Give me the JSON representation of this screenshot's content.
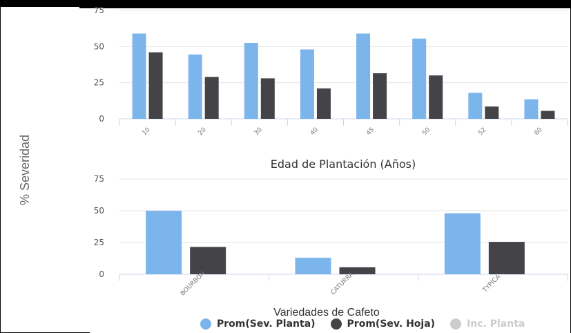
{
  "y_axis_label": "% Severidad",
  "legend": [
    {
      "label": "Prom(Sev. Planta)",
      "color": "#7cb5ec",
      "enabled": true
    },
    {
      "label": "Prom(Sev. Hoja)",
      "color": "#434348",
      "enabled": true
    },
    {
      "label": "Inc. Planta",
      "color": "#cccccc",
      "enabled": false
    }
  ],
  "chart_data": [
    {
      "type": "bar",
      "xlabel": "Edad de Plantación (Años)",
      "ylabel": "% Severidad",
      "categories": [
        "10",
        "20",
        "30",
        "40",
        "45",
        "50",
        "52",
        "60"
      ],
      "ylim": [
        0,
        75
      ],
      "yticks": [
        "0",
        "25",
        "50",
        "75"
      ],
      "grid": true,
      "series": [
        {
          "name": "Prom(Sev. Planta)",
          "color": "#7cb5ec",
          "values": [
            59,
            44.5,
            52.5,
            48,
            59,
            55.5,
            18,
            13.5
          ]
        },
        {
          "name": "Prom(Sev. Hoja)",
          "color": "#434348",
          "values": [
            46,
            29,
            28,
            21,
            31.5,
            30,
            8.5,
            5.5
          ]
        }
      ]
    },
    {
      "type": "bar",
      "xlabel": "Variedades de Cafeto",
      "ylabel": "% Severidad",
      "categories": [
        "BOURBON",
        "CATURRA",
        "TYPICA"
      ],
      "ylim": [
        0,
        75
      ],
      "yticks": [
        "0",
        "25",
        "50",
        "75"
      ],
      "grid": true,
      "series": [
        {
          "name": "Prom(Sev. Planta)",
          "color": "#7cb5ec",
          "values": [
            50,
            13,
            48
          ]
        },
        {
          "name": "Prom(Sev. Hoja)",
          "color": "#434348",
          "values": [
            21.5,
            5.5,
            25.5
          ]
        }
      ]
    }
  ]
}
